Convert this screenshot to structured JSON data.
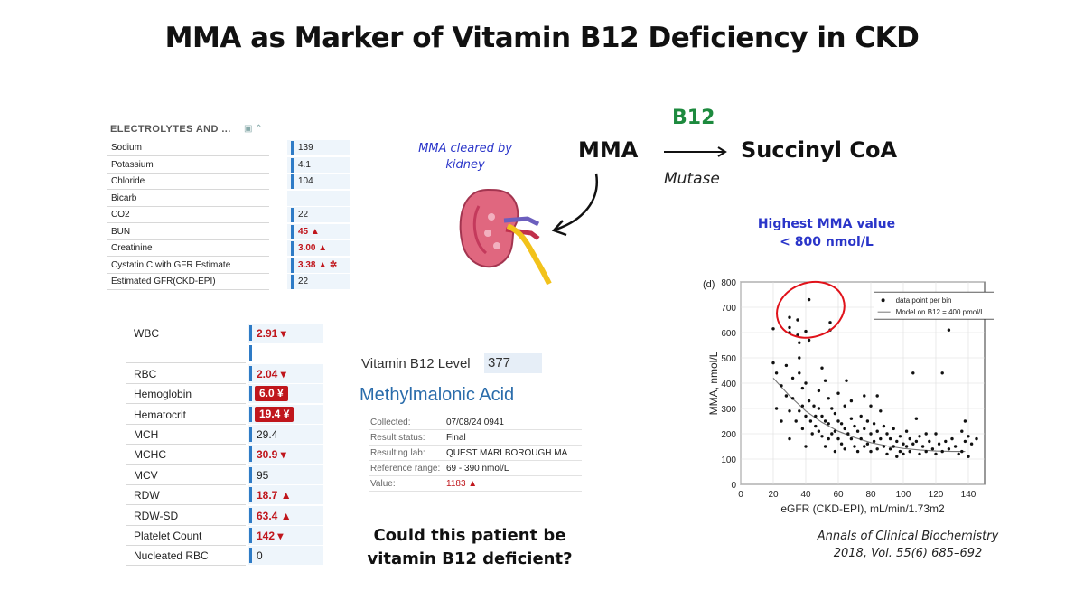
{
  "title": "MMA as Marker of Vitamin B12 Deficiency in CKD",
  "electrolytes": {
    "header": "ELECTROLYTES AND ...",
    "rows": [
      {
        "name": "Sodium",
        "value": "139",
        "flag": ""
      },
      {
        "name": "Potassium",
        "value": "4.1",
        "flag": ""
      },
      {
        "name": "Chloride",
        "value": "104",
        "flag": ""
      },
      {
        "name": "Bicarb",
        "value": "",
        "flag": ""
      },
      {
        "name": "CO2",
        "value": "22",
        "flag": ""
      },
      {
        "name": "BUN",
        "value": "45 ▲",
        "flag": "high"
      },
      {
        "name": "Creatinine",
        "value": "3.00 ▲",
        "flag": "high"
      },
      {
        "name": "Cystatin C with GFR Estimate",
        "value": "3.38 ▲ ✲",
        "flag": "high"
      },
      {
        "name": "Estimated GFR(CKD-EPI)",
        "value": "22",
        "flag": ""
      }
    ]
  },
  "cbc": {
    "rows": [
      {
        "name": "WBC",
        "value": "2.91 ▾",
        "style": "red"
      },
      {
        "name": "",
        "value": "",
        "style": "blank"
      },
      {
        "name": "RBC",
        "value": "2.04 ▾",
        "style": "red"
      },
      {
        "name": "Hemoglobin",
        "value": "6.0 ¥",
        "style": "badge"
      },
      {
        "name": "Hematocrit",
        "value": "19.4 ¥",
        "style": "badge"
      },
      {
        "name": "MCH",
        "value": "29.4",
        "style": "normal"
      },
      {
        "name": "MCHC",
        "value": "30.9 ▾",
        "style": "red"
      },
      {
        "name": "MCV",
        "value": "95",
        "style": "normal"
      },
      {
        "name": "RDW",
        "value": "18.7 ▲",
        "style": "red"
      },
      {
        "name": "RDW-SD",
        "value": "63.4 ▲",
        "style": "red"
      },
      {
        "name": "Platelet Count",
        "value": "142 ▾",
        "style": "red"
      },
      {
        "name": "Nucleated RBC",
        "value": "0",
        "style": "normal"
      }
    ]
  },
  "b12_lab": {
    "label": "Vitamin B12 Level",
    "value": "377",
    "mma_heading": "Methylmalonic Acid",
    "rows": [
      {
        "k": "Collected:",
        "v": "07/08/24 0941",
        "red": false
      },
      {
        "k": "Result status:",
        "v": "Final",
        "red": false
      },
      {
        "k": "Resulting lab:",
        "v": "QUEST MARLBOROUGH MA",
        "red": false
      },
      {
        "k": "Reference range:",
        "v": "69 - 390 nmol/L",
        "red": false
      },
      {
        "k": "Value:",
        "v": "1183 ▲",
        "red": true
      }
    ]
  },
  "question": [
    "Could this patient be",
    "vitamin B12 deficient?"
  ],
  "pathway": {
    "cleared": [
      "MMA cleared by",
      "kidney"
    ],
    "substrate": "MMA",
    "product": "Succinyl CoA",
    "cofactor": "B12",
    "enzyme": "Mutase"
  },
  "highest_note": [
    "Highest MMA value",
    "< 800 nmol/L"
  ],
  "citation": [
    "Annals of Clinical Biochemistry",
    "2018, Vol. 55(6) 685–692"
  ],
  "colors": {
    "blue_text": "#2a35c9",
    "green": "#1d8a3e",
    "lab_red": "#c0161c",
    "circle": "#e0121a"
  },
  "chart_data": {
    "type": "scatter",
    "panel_label": "(d)",
    "xlabel": "eGFR (CKD-EPI), mL/min/1.73m2",
    "ylabel": "MMA, nmol/L",
    "xlim": [
      0,
      150
    ],
    "ylim": [
      0,
      800
    ],
    "xticks": [
      0,
      20,
      40,
      60,
      80,
      100,
      120,
      140
    ],
    "yticks": [
      0,
      100,
      200,
      300,
      400,
      500,
      600,
      700,
      800
    ],
    "legend": [
      "data point per bin",
      "Model on B12 = 400 pmol/L"
    ],
    "legend_position": "top-right",
    "series": [
      {
        "name": "data point per bin",
        "points": [
          [
            20,
            615
          ],
          [
            20,
            480
          ],
          [
            22,
            440
          ],
          [
            22,
            300
          ],
          [
            25,
            390
          ],
          [
            25,
            250
          ],
          [
            28,
            470
          ],
          [
            28,
            350
          ],
          [
            30,
            660
          ],
          [
            30,
            620
          ],
          [
            30,
            600
          ],
          [
            30,
            290
          ],
          [
            30,
            180
          ],
          [
            32,
            420
          ],
          [
            32,
            340
          ],
          [
            34,
            250
          ],
          [
            35,
            650
          ],
          [
            35,
            590
          ],
          [
            36,
            560
          ],
          [
            36,
            500
          ],
          [
            36,
            440
          ],
          [
            36,
            290
          ],
          [
            38,
            380
          ],
          [
            38,
            310
          ],
          [
            38,
            220
          ],
          [
            40,
            605
          ],
          [
            40,
            400
          ],
          [
            40,
            270
          ],
          [
            40,
            150
          ],
          [
            42,
            730
          ],
          [
            42,
            570
          ],
          [
            42,
            330
          ],
          [
            43,
            250
          ],
          [
            44,
            200
          ],
          [
            45,
            310
          ],
          [
            46,
            270
          ],
          [
            46,
            230
          ],
          [
            48,
            370
          ],
          [
            48,
            300
          ],
          [
            48,
            210
          ],
          [
            50,
            460
          ],
          [
            50,
            270
          ],
          [
            50,
            190
          ],
          [
            52,
            410
          ],
          [
            52,
            250
          ],
          [
            52,
            150
          ],
          [
            54,
            340
          ],
          [
            54,
            240
          ],
          [
            54,
            180
          ],
          [
            55,
            640
          ],
          [
            55,
            610
          ],
          [
            56,
            300
          ],
          [
            56,
            200
          ],
          [
            58,
            280
          ],
          [
            58,
            210
          ],
          [
            58,
            130
          ],
          [
            60,
            360
          ],
          [
            60,
            250
          ],
          [
            60,
            180
          ],
          [
            62,
            240
          ],
          [
            62,
            160
          ],
          [
            64,
            310
          ],
          [
            64,
            220
          ],
          [
            64,
            140
          ],
          [
            65,
            410
          ],
          [
            66,
            200
          ],
          [
            68,
            330
          ],
          [
            68,
            260
          ],
          [
            68,
            180
          ],
          [
            70,
            230
          ],
          [
            70,
            150
          ],
          [
            72,
            210
          ],
          [
            72,
            130
          ],
          [
            74,
            270
          ],
          [
            74,
            180
          ],
          [
            76,
            350
          ],
          [
            76,
            220
          ],
          [
            76,
            150
          ],
          [
            78,
            250
          ],
          [
            78,
            160
          ],
          [
            80,
            310
          ],
          [
            80,
            200
          ],
          [
            80,
            130
          ],
          [
            82,
            240
          ],
          [
            82,
            170
          ],
          [
            84,
            350
          ],
          [
            84,
            210
          ],
          [
            84,
            140
          ],
          [
            86,
            290
          ],
          [
            86,
            180
          ],
          [
            88,
            230
          ],
          [
            88,
            150
          ],
          [
            90,
            200
          ],
          [
            90,
            120
          ],
          [
            92,
            180
          ],
          [
            92,
            140
          ],
          [
            94,
            220
          ],
          [
            94,
            150
          ],
          [
            96,
            170
          ],
          [
            96,
            110
          ],
          [
            98,
            190
          ],
          [
            98,
            130
          ],
          [
            100,
            160
          ],
          [
            100,
            120
          ],
          [
            102,
            210
          ],
          [
            102,
            150
          ],
          [
            104,
            180
          ],
          [
            104,
            130
          ],
          [
            106,
            440
          ],
          [
            106,
            160
          ],
          [
            108,
            260
          ],
          [
            108,
            170
          ],
          [
            110,
            190
          ],
          [
            110,
            120
          ],
          [
            112,
            150
          ],
          [
            114,
            200
          ],
          [
            114,
            130
          ],
          [
            116,
            170
          ],
          [
            118,
            140
          ],
          [
            120,
            200
          ],
          [
            120,
            120
          ],
          [
            122,
            160
          ],
          [
            124,
            440
          ],
          [
            124,
            130
          ],
          [
            126,
            170
          ],
          [
            128,
            610
          ],
          [
            128,
            140
          ],
          [
            130,
            180
          ],
          [
            132,
            150
          ],
          [
            134,
            120
          ],
          [
            136,
            210
          ],
          [
            136,
            130
          ],
          [
            138,
            250
          ],
          [
            138,
            170
          ],
          [
            140,
            190
          ],
          [
            140,
            110
          ],
          [
            142,
            160
          ],
          [
            145,
            180
          ]
        ]
      },
      {
        "name": "Model on B12 = 400 pmol/L",
        "line": [
          [
            20,
            420
          ],
          [
            30,
            350
          ],
          [
            40,
            290
          ],
          [
            50,
            245
          ],
          [
            60,
            210
          ],
          [
            70,
            185
          ],
          [
            80,
            165
          ],
          [
            90,
            152
          ],
          [
            100,
            142
          ],
          [
            110,
            136
          ],
          [
            120,
            132
          ],
          [
            130,
            130
          ],
          [
            138,
            130
          ]
        ]
      }
    ]
  }
}
